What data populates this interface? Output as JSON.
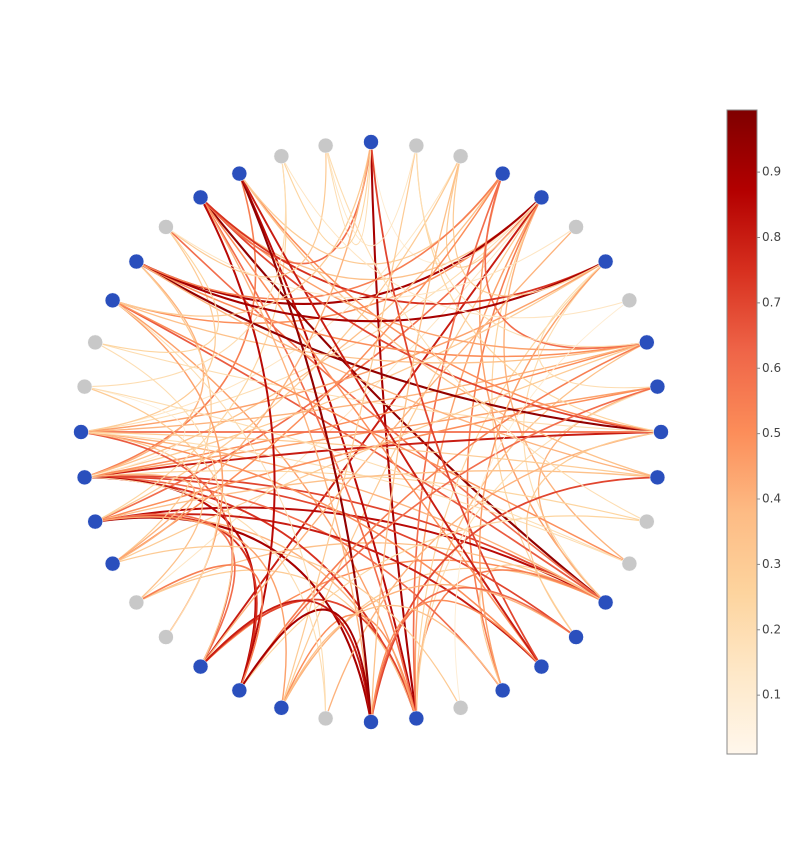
{
  "chart_data": {
    "type": "network",
    "node_colors": [
      "#2a4fbd",
      "#c8c8c8",
      "#c8c8c8",
      "#2a4fbd",
      "#2a4fbd",
      "#c8c8c8",
      "#2a4fbd",
      "#c8c8c8",
      "#2a4fbd",
      "#2a4fbd",
      "#2a4fbd",
      "#2a4fbd",
      "#c8c8c8",
      "#c8c8c8",
      "#2a4fbd",
      "#2a4fbd",
      "#2a4fbd",
      "#2a4fbd",
      "#c8c8c8",
      "#2a4fbd",
      "#2a4fbd",
      "#c8c8c8",
      "#2a4fbd",
      "#2a4fbd",
      "#2a4fbd",
      "#c8c8c8",
      "#c8c8c8",
      "#2a4fbd",
      "#2a4fbd",
      "#2a4fbd",
      "#2a4fbd",
      "#c8c8c8",
      "#c8c8c8",
      "#2a4fbd",
      "#2a4fbd",
      "#c8c8c8",
      "#2a4fbd",
      "#2a4fbd",
      "#c8c8c8",
      "#c8c8c8"
    ],
    "edges": [
      [
        4,
        19,
        0.45
      ],
      [
        4,
        22,
        0.3
      ],
      [
        4,
        24,
        0.8
      ],
      [
        4,
        28,
        0.6
      ],
      [
        4,
        30,
        0.2
      ],
      [
        4,
        33,
        0.5
      ],
      [
        4,
        36,
        0.35
      ],
      [
        4,
        13,
        0.4
      ],
      [
        4,
        15,
        0.25
      ],
      [
        4,
        17,
        0.55
      ],
      [
        4,
        34,
        0.9
      ],
      [
        4,
        26,
        0.15
      ],
      [
        4,
        2,
        0.3
      ],
      [
        4,
        0,
        0.1
      ],
      [
        14,
        28,
        0.85
      ],
      [
        14,
        29,
        0.7
      ],
      [
        14,
        30,
        0.4
      ],
      [
        14,
        36,
        0.95
      ],
      [
        14,
        35,
        0.6
      ],
      [
        14,
        22,
        0.3
      ],
      [
        14,
        24,
        0.5
      ],
      [
        14,
        3,
        0.45
      ],
      [
        14,
        6,
        0.2
      ],
      [
        14,
        33,
        0.65
      ],
      [
        14,
        26,
        0.35
      ],
      [
        14,
        9,
        0.4
      ],
      [
        14,
        19,
        0.55
      ],
      [
        14,
        17,
        0.3
      ],
      [
        19,
        0,
        0.9
      ],
      [
        19,
        37,
        0.85
      ],
      [
        19,
        36,
        0.6
      ],
      [
        19,
        29,
        0.75
      ],
      [
        19,
        28,
        0.4
      ],
      [
        19,
        26,
        0.3
      ],
      [
        19,
        24,
        0.7
      ],
      [
        19,
        22,
        0.5
      ],
      [
        19,
        9,
        0.2
      ],
      [
        19,
        8,
        0.35
      ],
      [
        19,
        6,
        0.25
      ],
      [
        19,
        3,
        0.6
      ],
      [
        19,
        33,
        0.45
      ],
      [
        29,
        10,
        0.8
      ],
      [
        29,
        9,
        0.45
      ],
      [
        29,
        8,
        0.5
      ],
      [
        29,
        15,
        0.7
      ],
      [
        29,
        17,
        0.6
      ],
      [
        29,
        3,
        0.35
      ],
      [
        29,
        6,
        0.3
      ],
      [
        29,
        12,
        0.25
      ],
      [
        29,
        23,
        0.85
      ],
      [
        29,
        37,
        0.55
      ],
      [
        29,
        34,
        0.4
      ],
      [
        29,
        21,
        0.2
      ],
      [
        30,
        10,
        0.6
      ],
      [
        30,
        8,
        0.4
      ],
      [
        30,
        11,
        0.3
      ],
      [
        30,
        16,
        0.5
      ],
      [
        30,
        13,
        0.2
      ],
      [
        30,
        6,
        0.45
      ],
      [
        30,
        2,
        0.15
      ],
      [
        30,
        35,
        0.3
      ],
      [
        30,
        24,
        0.65
      ],
      [
        28,
        9,
        0.5
      ],
      [
        28,
        11,
        0.35
      ],
      [
        28,
        16,
        0.8
      ],
      [
        28,
        20,
        0.9
      ],
      [
        28,
        23,
        0.75
      ],
      [
        28,
        24,
        0.6
      ],
      [
        28,
        38,
        0.25
      ],
      [
        28,
        2,
        0.3
      ],
      [
        10,
        34,
        0.95
      ],
      [
        10,
        36,
        0.7
      ],
      [
        10,
        37,
        0.5
      ],
      [
        10,
        32,
        0.2
      ],
      [
        10,
        21,
        0.4
      ],
      [
        10,
        15,
        0.3
      ],
      [
        10,
        1,
        0.25
      ],
      [
        8,
        36,
        0.45
      ],
      [
        8,
        33,
        0.35
      ],
      [
        8,
        34,
        0.5
      ],
      [
        8,
        27,
        0.3
      ],
      [
        8,
        23,
        0.55
      ],
      [
        8,
        3,
        0.6
      ],
      [
        8,
        1,
        0.2
      ],
      [
        36,
        0,
        0.6
      ],
      [
        36,
        6,
        0.75
      ],
      [
        36,
        20,
        0.4
      ],
      [
        36,
        16,
        0.5
      ],
      [
        36,
        23,
        0.85
      ],
      [
        37,
        20,
        0.95
      ],
      [
        37,
        16,
        0.8
      ],
      [
        37,
        11,
        0.35
      ],
      [
        37,
        3,
        0.3
      ],
      [
        34,
        6,
        0.9
      ],
      [
        34,
        3,
        0.55
      ],
      [
        34,
        11,
        0.4
      ],
      [
        34,
        27,
        0.3
      ],
      [
        33,
        13,
        0.5
      ],
      [
        33,
        0,
        0.3
      ],
      [
        33,
        25,
        0.45
      ],
      [
        0,
        38,
        0.25
      ],
      [
        0,
        39,
        0.2
      ],
      [
        0,
        16,
        0.7
      ],
      [
        0,
        27,
        0.4
      ],
      [
        1,
        22,
        0.3
      ],
      [
        1,
        39,
        0.15
      ],
      [
        2,
        20,
        0.35
      ],
      [
        2,
        6,
        0.3
      ],
      [
        3,
        27,
        0.5
      ],
      [
        5,
        24,
        0.4
      ],
      [
        6,
        17,
        0.45
      ],
      [
        6,
        9,
        0.2
      ],
      [
        9,
        23,
        0.6
      ],
      [
        11,
        20,
        0.7
      ],
      [
        12,
        23,
        0.25
      ],
      [
        15,
        22,
        0.4
      ],
      [
        15,
        20,
        0.6
      ],
      [
        16,
        20,
        0.5
      ],
      [
        17,
        22,
        0.35
      ],
      [
        20,
        24,
        0.8
      ],
      [
        20,
        23,
        0.9
      ],
      [
        21,
        33,
        0.2
      ],
      [
        22,
        28,
        0.45
      ],
      [
        23,
        26,
        0.55
      ],
      [
        24,
        31,
        0.3
      ],
      [
        25,
        32,
        0.2
      ],
      [
        26,
        30,
        0.35
      ],
      [
        27,
        29,
        0.4
      ],
      [
        29,
        31,
        0.1
      ],
      [
        31,
        38,
        0.2
      ],
      [
        32,
        35,
        0.25
      ],
      [
        35,
        39,
        0.3
      ],
      [
        38,
        7,
        0.15
      ],
      [
        39,
        12,
        0.2
      ],
      [
        7,
        18,
        0.1
      ],
      [
        18,
        27,
        0.3
      ],
      [
        13,
        31,
        0.2
      ],
      [
        5,
        35,
        0.15
      ]
    ],
    "colorscale": [
      "#fff7ec",
      "#fee8c8",
      "#fdd49e",
      "#fdbb84",
      "#fc8d59",
      "#ef6548",
      "#d7301f",
      "#b30000",
      "#7f0000"
    ],
    "clim": [
      0.01,
      0.995
    ],
    "cticks": [
      0.1,
      0.2,
      0.3,
      0.4,
      0.5,
      0.6,
      0.7,
      0.8,
      0.9
    ]
  }
}
